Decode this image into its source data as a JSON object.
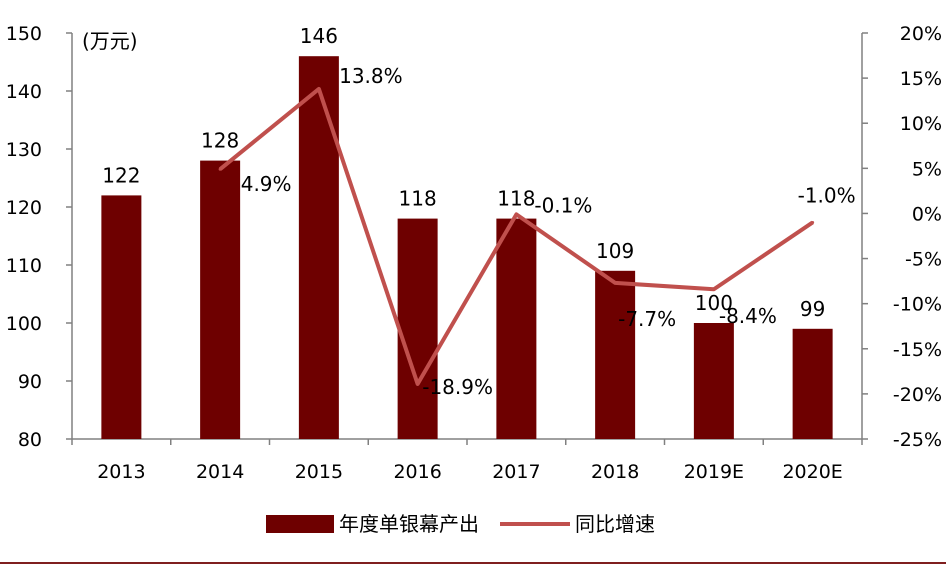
{
  "colors": {
    "bar": "#6e0000",
    "line": "#c0504d",
    "axis": "#808080",
    "border": "#7f1f1f"
  },
  "chart_data": {
    "type": "bar",
    "categories": [
      "2013",
      "2014",
      "2015",
      "2016",
      "2017",
      "2018",
      "2019E",
      "2020E"
    ],
    "y_left": {
      "unit": "(万元)",
      "ylim": [
        80,
        150
      ],
      "ticks": [
        "80",
        "90",
        "100",
        "110",
        "120",
        "130",
        "140",
        "150"
      ]
    },
    "y_right": {
      "ylim": [
        -25,
        20
      ],
      "ticks": [
        "-25%",
        "-20%",
        "-15%",
        "-10%",
        "-5%",
        "0%",
        "5%",
        "10%",
        "15%",
        "20%"
      ]
    },
    "series": [
      {
        "name": "年度单银幕产出",
        "type": "bar",
        "axis": "left",
        "values": [
          122,
          128,
          146,
          118,
          118,
          109,
          100,
          99
        ],
        "labels": [
          "122",
          "128",
          "146",
          "118",
          "118",
          "109",
          "100",
          "99"
        ]
      },
      {
        "name": "同比增速",
        "type": "line",
        "axis": "right",
        "values": [
          null,
          4.9,
          13.8,
          -18.9,
          -0.1,
          -7.7,
          -8.4,
          -1.0
        ],
        "labels": [
          "",
          "4.9%",
          "13.8%",
          "-18.9%",
          "-0.1%",
          "-7.7%",
          "-8.4%",
          "-1.0%"
        ]
      }
    ],
    "legend": "bottom",
    "grid": false
  }
}
